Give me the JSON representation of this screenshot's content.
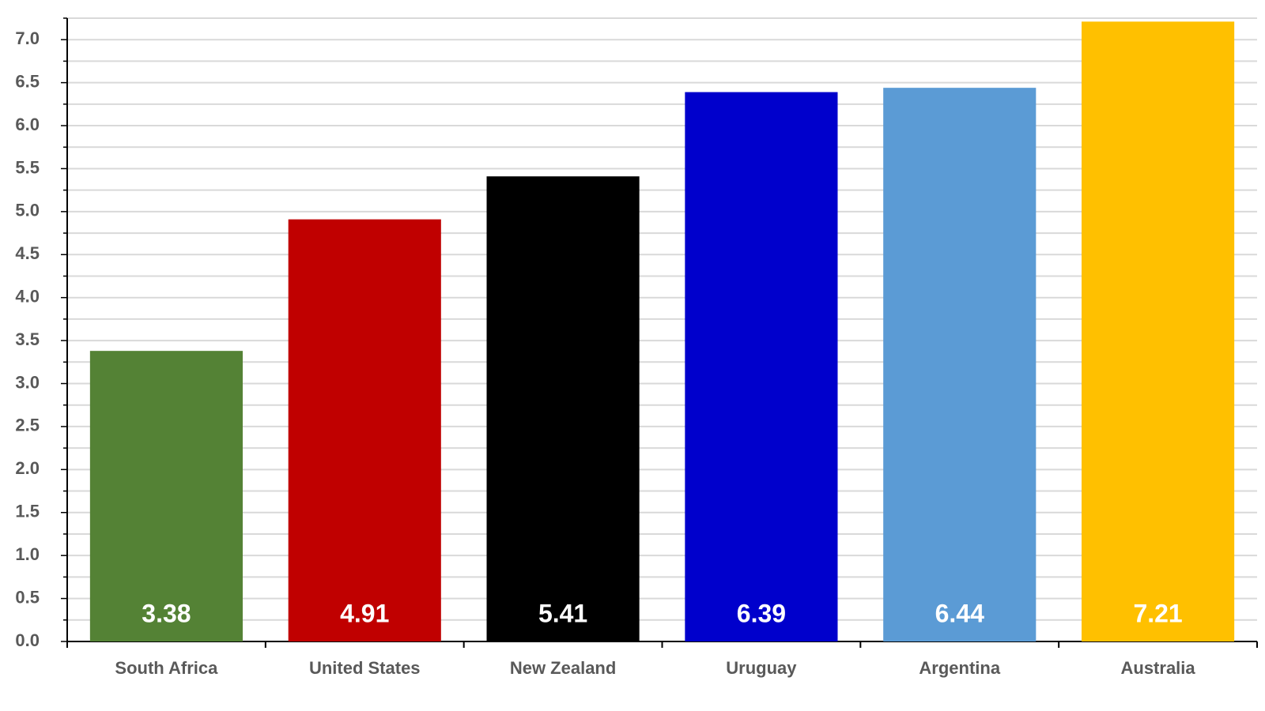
{
  "chart_data": {
    "type": "bar",
    "categories": [
      "South Africa",
      "United States",
      "New Zealand",
      "Uruguay",
      "Argentina",
      "Australia"
    ],
    "values": [
      3.38,
      4.91,
      5.41,
      6.39,
      6.44,
      7.21
    ],
    "colors": [
      "#548235",
      "#c00000",
      "#000000",
      "#0000cc",
      "#5b9bd5",
      "#ffc000"
    ],
    "ylim": [
      0,
      7.25
    ],
    "yticks": [
      {
        "value": 0,
        "label": "0.0"
      },
      {
        "value": 0.5,
        "label": "0.5"
      },
      {
        "value": 1,
        "label": "1.0"
      },
      {
        "value": 1.5,
        "label": "1.5"
      },
      {
        "value": 2,
        "label": "2.0"
      },
      {
        "value": 2.5,
        "label": "2.5"
      },
      {
        "value": 3,
        "label": "3.0"
      },
      {
        "value": 3.5,
        "label": "3.5"
      },
      {
        "value": 4,
        "label": "4.0"
      },
      {
        "value": 4.5,
        "label": "4.5"
      },
      {
        "value": 5,
        "label": "5.0"
      },
      {
        "value": 5.5,
        "label": "5.5"
      },
      {
        "value": 6,
        "label": "6.0"
      },
      {
        "value": 6.5,
        "label": "6.5"
      },
      {
        "value": 7,
        "label": "7.0"
      }
    ],
    "minor_yticks": [
      0.25,
      0.75,
      1.25,
      1.75,
      2.25,
      2.75,
      3.25,
      3.75,
      4.25,
      4.75,
      5.25,
      5.75,
      6.25,
      6.75,
      7.25
    ],
    "grid": true
  }
}
